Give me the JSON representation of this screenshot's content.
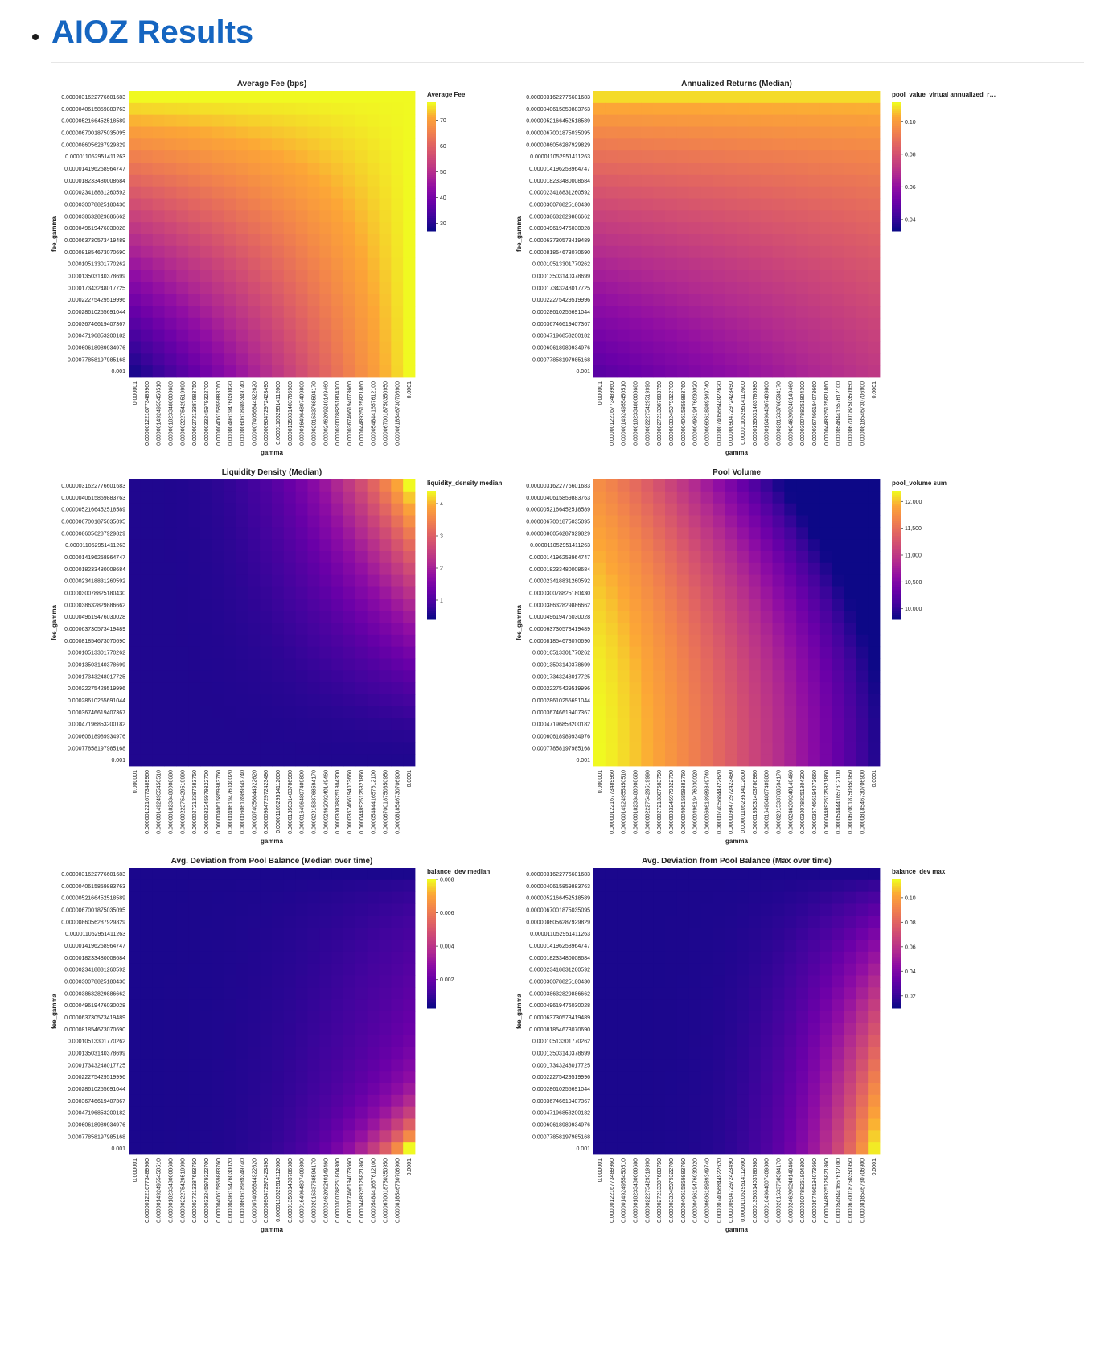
{
  "page": {
    "bullet": "•",
    "title": "AIOZ Results"
  },
  "shared_axes": {
    "fee_gamma_ticks": [
      "0.0000031622776601683",
      "0.0000040615859883763",
      "0.0000052166452518589",
      "0.0000067001875035095",
      "0.0000086056287929829",
      "0.000011052951411263",
      "0.000014196258964747",
      "0.000018233480008684",
      "0.000023418831260592",
      "0.000030078825180430",
      "0.000038632829886662",
      "0.000049619476030028",
      "0.000063730573419489",
      "0.000081854673070690",
      "0.00010513301770262",
      "0.00013503140378699",
      "0.00017343248017725",
      "0.00022275429519996",
      "0.00028610255691044",
      "0.00036746619407367",
      "0.00047196853200182",
      "0.00060618989934976",
      "0.00077858197985168",
      "0.001"
    ],
    "gamma_ticks": [
      "0.000001",
      "0.0000012216773489960",
      "0.0000014924955450510",
      "0.0000018233480008680",
      "0.0000022275429519990",
      "0.0000027213387683750",
      "0.0000033245979322700",
      "0.0000040615859883760",
      "0.0000049619476030020",
      "0.0000060618989349740",
      "0.0000074056844922620",
      "0.0000090472972423490",
      "0.0000110529514112600",
      "0.0000135031403786980",
      "0.0000164964807409800",
      "0.0000201533768594170",
      "0.0000246209240149460",
      "0.0000300788251804300",
      "0.0000367466194073660",
      "0.0000448925125821860",
      "0.0000548441657612100",
      "0.0000670018750350950",
      "0.0000818546730706900",
      "0.0001"
    ]
  },
  "chart_data": [
    {
      "id": "avg_fee",
      "type": "heatmap",
      "title": "Average Fee (bps)",
      "xlabel": "gamma",
      "ylabel": "fee_gamma",
      "colorbar_title": "Average Fee",
      "colorbar_ticks": [
        "30",
        "40",
        "50",
        "60",
        "70"
      ],
      "value_range": [
        27,
        77
      ],
      "pattern": "fee",
      "colorscale": "plasma"
    },
    {
      "id": "annual_returns",
      "type": "heatmap",
      "title": "Annualized Returns (Median)",
      "xlabel": "gamma",
      "ylabel": "fee_gamma",
      "colorbar_title": "pool_value_virtual annualized_r…",
      "colorbar_ticks": [
        "0.04",
        "0.06",
        "0.08",
        "0.10"
      ],
      "value_range": [
        0.033,
        0.112
      ],
      "pattern": "returns",
      "colorscale": "plasma"
    },
    {
      "id": "liquidity_density",
      "type": "heatmap",
      "title": "Liquidity Density (Median)",
      "xlabel": "gamma",
      "ylabel": "fee_gamma",
      "colorbar_title": "liquidity_density median",
      "colorbar_ticks": [
        "1",
        "2",
        "3",
        "4"
      ],
      "value_range": [
        0.4,
        4.4
      ],
      "pattern": "density",
      "colorscale": "plasma"
    },
    {
      "id": "pool_volume",
      "type": "heatmap",
      "title": "Pool Volume",
      "xlabel": "gamma",
      "ylabel": "fee_gamma",
      "colorbar_title": "pool_volume sum",
      "colorbar_ticks": [
        "10,000",
        "10,500",
        "11,000",
        "11,500",
        "12,000"
      ],
      "value_range": [
        9800,
        12200
      ],
      "pattern": "volume",
      "colorscale": "plasma"
    },
    {
      "id": "balance_dev_median",
      "type": "heatmap",
      "title": "Avg. Deviation from Pool Balance (Median over time)",
      "xlabel": "gamma",
      "ylabel": "fee_gamma",
      "colorbar_title": "balance_dev median",
      "colorbar_ticks": [
        "0.002",
        "0.004",
        "0.006",
        "0.008"
      ],
      "value_range": [
        0.0003,
        0.008
      ],
      "pattern": "devmed",
      "colorscale": "plasma"
    },
    {
      "id": "balance_dev_max",
      "type": "heatmap",
      "title": "Avg. Deviation from Pool Balance (Max over time)",
      "xlabel": "gamma",
      "ylabel": "fee_gamma",
      "colorbar_title": "balance_dev max",
      "colorbar_ticks": [
        "0.02",
        "0.04",
        "0.06",
        "0.08",
        "0.10"
      ],
      "value_range": [
        0.01,
        0.115
      ],
      "pattern": "devmax",
      "colorscale": "plasma"
    }
  ]
}
